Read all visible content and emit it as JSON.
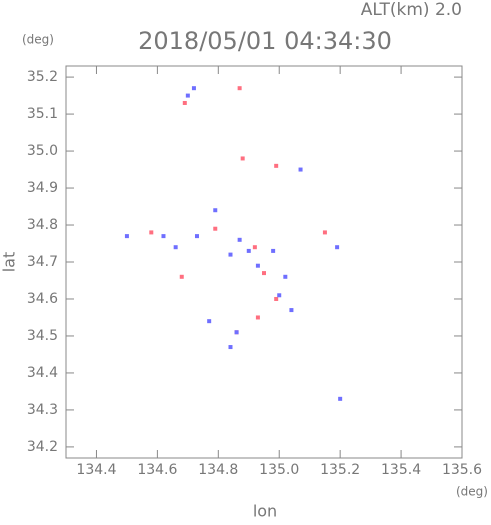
{
  "chart_data": {
    "type": "scatter",
    "title": "2018/05/01 04:34:30",
    "subtitle": "ALT(km) 2.0",
    "ylabel": "lat",
    "ylabel_unit": "(deg)",
    "xlabel": "lon",
    "xlabel_unit": "(deg)",
    "xlim": [
      134.3,
      135.6
    ],
    "ylim": [
      34.17,
      35.23
    ],
    "xticks": [
      134.4,
      134.6,
      134.8,
      {
        "value": 135,
        "label": "135.0"
      },
      135.2,
      135.4,
      135.6
    ],
    "yticks": [
      34.2,
      34.3,
      34.4,
      34.5,
      34.6,
      34.7,
      34.8,
      34.9,
      {
        "value": 35,
        "label": "35.0"
      },
      35.1,
      35.2
    ],
    "series": [
      {
        "color": "#ff6f80",
        "x": [
          134.69,
          134.87,
          134.88,
          134.99,
          134.58,
          134.79,
          134.92,
          134.95,
          134.99,
          134.93,
          134.68,
          135.15,
          134.86
        ],
        "y": [
          35.13,
          35.17,
          34.98,
          34.96,
          34.78,
          34.79,
          34.74,
          34.67,
          34.6,
          34.55,
          34.66,
          34.78,
          34.51
        ]
      },
      {
        "color": "#6f6fff",
        "x": [
          134.72,
          134.7,
          135.07,
          134.79,
          134.5,
          134.62,
          134.73,
          134.84,
          134.9,
          134.98,
          134.93,
          135.02,
          135.0,
          135.04,
          134.86,
          134.77,
          134.84,
          135.19,
          135.2,
          134.66,
          134.87
        ],
        "y": [
          35.17,
          35.15,
          34.95,
          34.84,
          34.77,
          34.77,
          34.77,
          34.72,
          34.73,
          34.73,
          34.69,
          34.66,
          34.61,
          34.57,
          34.51,
          34.54,
          34.47,
          34.74,
          34.33,
          34.74,
          34.76
        ]
      }
    ]
  }
}
